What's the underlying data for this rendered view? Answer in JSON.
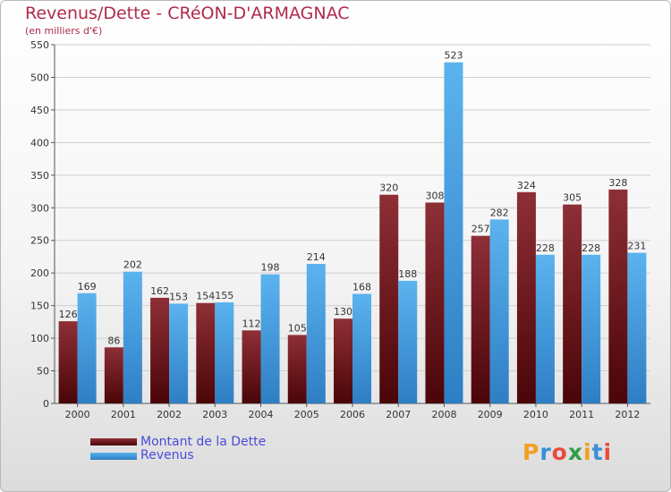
{
  "page": {
    "title": "Revenus/Dette - CRéON-D'ARMAGNAC",
    "subtitle": "(en milliers d'€)"
  },
  "legend": {
    "dette_label": "Montant de la Dette",
    "revenus_label": "Revenus"
  },
  "logo": {
    "text": "Proxiti"
  },
  "colors": {
    "dette_top": "#8e2f36",
    "dette_bottom": "#4a0508",
    "revenus_top": "#5bb3ee",
    "revenus_bottom": "#2e7ec4",
    "title": "#b02a4a",
    "legend_text": "#4a4adb"
  },
  "chart_data": {
    "type": "bar",
    "title": "Revenus/Dette - CRéON-D'ARMAGNAC",
    "ylabel": "(en milliers d'€)",
    "xlabel": "",
    "categories": [
      "2000",
      "2001",
      "2002",
      "2003",
      "2004",
      "2005",
      "2006",
      "2007",
      "2008",
      "2009",
      "2010",
      "2011",
      "2012"
    ],
    "series": [
      {
        "name": "Montant de la Dette",
        "values": [
          126,
          86,
          162,
          154,
          112,
          105,
          130,
          320,
          308,
          257,
          324,
          305,
          328
        ]
      },
      {
        "name": "Revenus",
        "values": [
          169,
          202,
          153,
          155,
          198,
          214,
          168,
          188,
          523,
          282,
          228,
          228,
          231
        ]
      }
    ],
    "ylim": [
      0,
      550
    ],
    "yticks": [
      0,
      50,
      100,
      150,
      200,
      250,
      300,
      350,
      400,
      450,
      500,
      550
    ],
    "grid": true,
    "legend": "bottom-left"
  }
}
